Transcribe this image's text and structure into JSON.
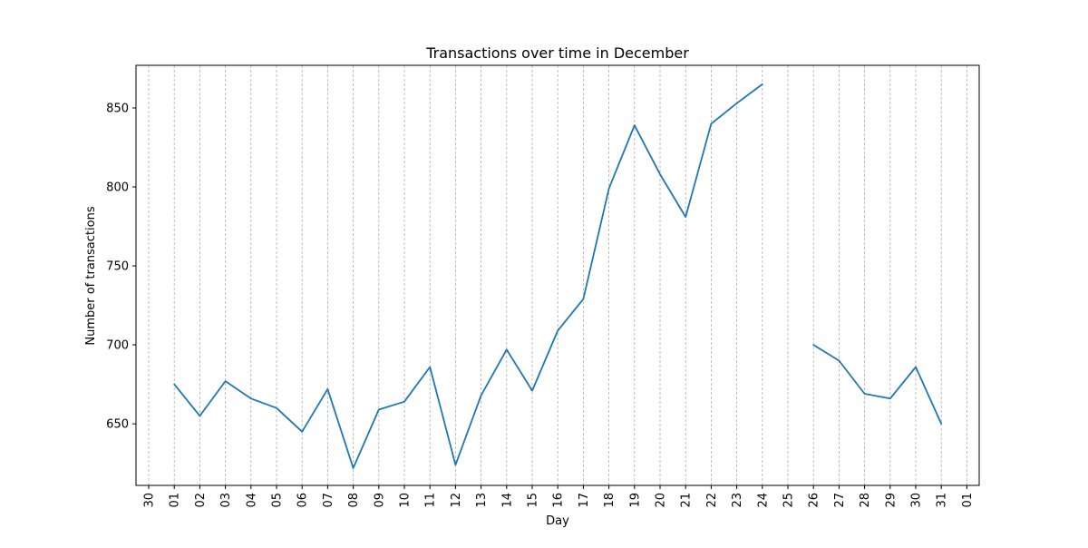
{
  "chart_data": {
    "type": "line",
    "title": "Transactions over time in December",
    "xlabel": "Day",
    "ylabel": "Number of transactions",
    "x_ticks": [
      "30",
      "01",
      "02",
      "03",
      "04",
      "05",
      "06",
      "07",
      "08",
      "09",
      "10",
      "11",
      "12",
      "13",
      "14",
      "15",
      "16",
      "17",
      "18",
      "19",
      "20",
      "21",
      "22",
      "23",
      "24",
      "25",
      "26",
      "27",
      "28",
      "29",
      "30",
      "31",
      "01"
    ],
    "y_ticks": [
      650,
      700,
      750,
      800,
      850
    ],
    "ylim": [
      611,
      877
    ],
    "grid": "x-dashed",
    "line_color": "#1f77b4",
    "series": [
      {
        "x": [
          "01",
          "02",
          "03",
          "04",
          "05",
          "06",
          "07",
          "08",
          "09",
          "10",
          "11",
          "12",
          "13",
          "14",
          "15",
          "16",
          "17",
          "18",
          "19",
          "20",
          "21",
          "22",
          "23",
          "24",
          "25",
          "26",
          "27",
          "28",
          "29",
          "30",
          "31"
        ],
        "values": [
          675,
          655,
          677,
          666,
          660,
          645,
          672,
          622,
          659,
          664,
          686,
          624,
          668,
          697,
          671,
          709,
          729,
          799,
          839,
          808,
          781,
          840,
          853,
          865,
          null,
          700,
          690,
          669,
          666,
          686,
          650
        ]
      }
    ]
  }
}
